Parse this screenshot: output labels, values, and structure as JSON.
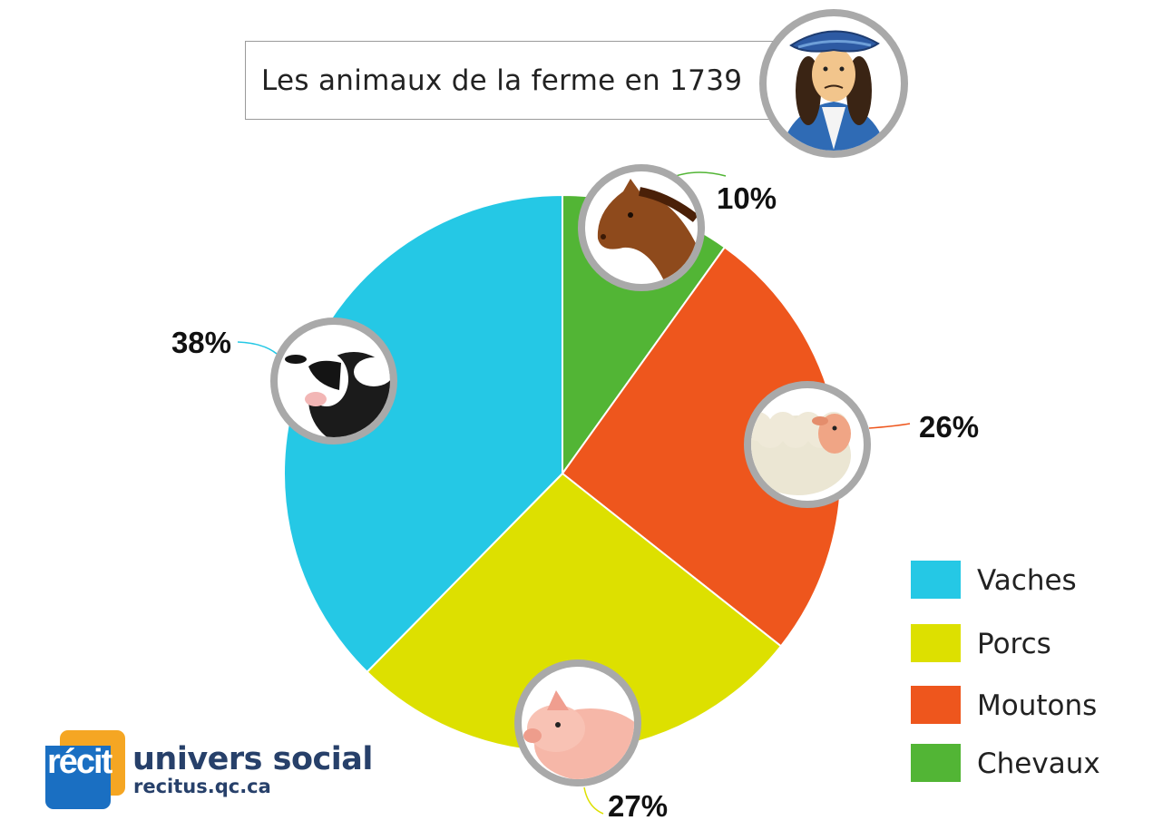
{
  "title": "Les animaux de la ferme en 1739",
  "chart_data": {
    "type": "pie",
    "title": "Les animaux de la ferme en 1739",
    "slices": [
      {
        "name": "Chevaux",
        "value": 10,
        "label": "10%",
        "color": "#52b535",
        "icon": "horse-icon"
      },
      {
        "name": "Moutons",
        "value": 26,
        "label": "26%",
        "color": "#ee561d",
        "icon": "sheep-icon"
      },
      {
        "name": "Porcs",
        "value": 27,
        "label": "27%",
        "color": "#dde000",
        "icon": "pig-icon"
      },
      {
        "name": "Vaches",
        "value": 38,
        "label": "38%",
        "color": "#25c8e5",
        "icon": "cow-icon"
      }
    ],
    "legend_position": "bottom-right",
    "start": "top, clockwise"
  },
  "legend": [
    {
      "label": "Vaches",
      "color": "#25c8e5"
    },
    {
      "label": "Porcs",
      "color": "#dde000"
    },
    {
      "label": "Moutons",
      "color": "#ee561d"
    },
    {
      "label": "Chevaux",
      "color": "#52b535"
    }
  ],
  "portrait_icon": "settler-portrait-icon",
  "logo": {
    "mark": "récit",
    "name": "univers social",
    "url": "recitus.qc.ca"
  }
}
